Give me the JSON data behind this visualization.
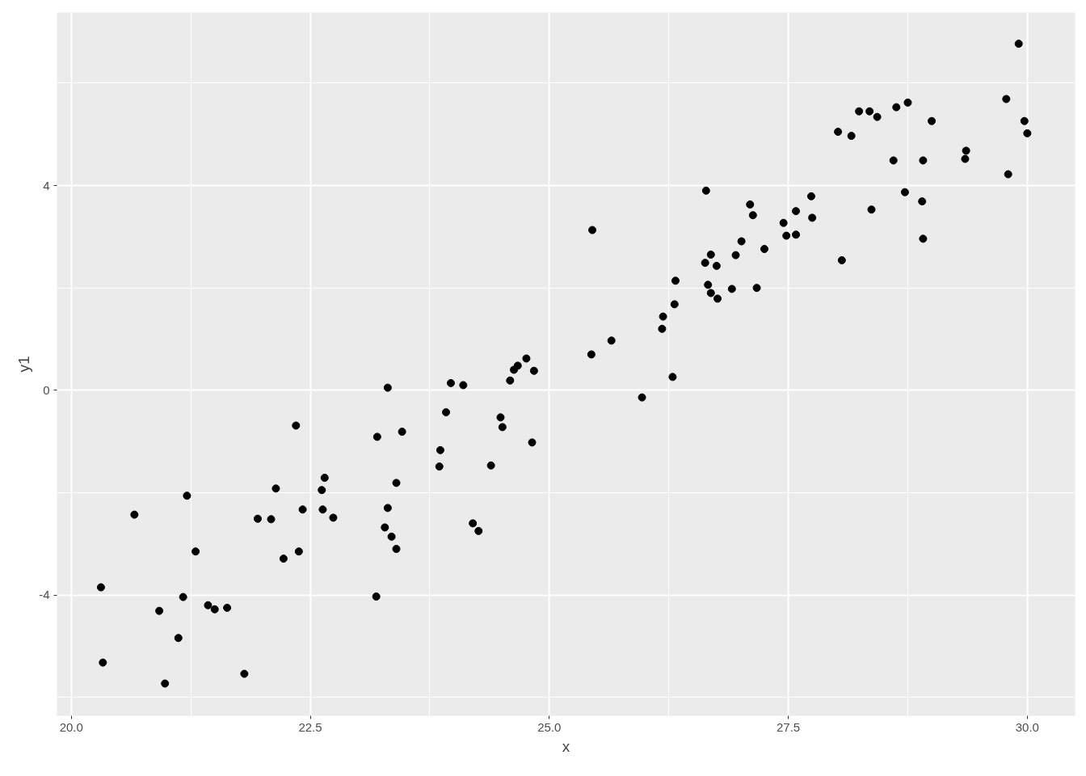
{
  "chart_data": {
    "type": "scatter",
    "xlabel": "x",
    "ylabel": "y1",
    "xlim": [
      19.85,
      30.5
    ],
    "ylim": [
      -6.36,
      7.38
    ],
    "xticks": [
      {
        "value": 20,
        "label": "20.0"
      },
      {
        "value": 22.5,
        "label": "22.5"
      },
      {
        "value": 25,
        "label": "25.0"
      },
      {
        "value": 27.5,
        "label": "27.5"
      },
      {
        "value": 30,
        "label": "30.0"
      }
    ],
    "yticks": [
      -4,
      0,
      4
    ],
    "grid": true,
    "marker": "circle",
    "series": [
      {
        "color": "#000000",
        "x": [
          20.31,
          20.33,
          20.66,
          20.92,
          20.98,
          21.12,
          21.17,
          21.21,
          21.3,
          21.43,
          21.5,
          21.63,
          21.81,
          21.95,
          22.09,
          22.14,
          22.22,
          22.35,
          22.38,
          22.42,
          22.62,
          22.65,
          22.63,
          22.74,
          23.19,
          23.2,
          23.28,
          23.31,
          23.31,
          23.35,
          23.4,
          23.4,
          23.46,
          23.85,
          23.86,
          23.92,
          23.97,
          24.1,
          24.2,
          24.26,
          24.39,
          24.49,
          24.51,
          24.59,
          24.63,
          24.67,
          24.76,
          24.82,
          24.84,
          25.44,
          25.45,
          25.65,
          25.97,
          26.18,
          26.19,
          26.29,
          26.31,
          26.32,
          26.63,
          26.64,
          26.66,
          26.69,
          26.69,
          26.75,
          26.76,
          26.91,
          26.95,
          27.01,
          27.1,
          27.13,
          27.17,
          27.25,
          27.45,
          27.48,
          27.58,
          27.58,
          27.74,
          27.75,
          28.02,
          28.06,
          28.16,
          28.24,
          28.35,
          28.37,
          28.43,
          28.6,
          28.63,
          28.72,
          28.75,
          28.9,
          28.91,
          28.91,
          29.0,
          29.35,
          29.36,
          29.78,
          29.8,
          29.91,
          29.97,
          30.0
        ],
        "values": [
          -3.85,
          -5.32,
          -2.43,
          -4.31,
          -5.73,
          -4.84,
          -4.04,
          -2.06,
          -3.15,
          -4.2,
          -4.28,
          -4.25,
          -5.54,
          -2.51,
          -2.52,
          -1.92,
          -3.29,
          -0.69,
          -3.15,
          -2.33,
          -1.95,
          -1.71,
          -2.33,
          -2.49,
          -4.03,
          -0.91,
          -2.68,
          0.05,
          -2.3,
          -2.86,
          -1.81,
          -3.1,
          -0.81,
          -1.49,
          -1.17,
          -0.43,
          0.14,
          0.1,
          -2.6,
          -2.75,
          -1.47,
          -0.53,
          -0.72,
          0.19,
          0.4,
          0.48,
          0.62,
          -1.02,
          0.38,
          0.7,
          3.13,
          0.97,
          -0.14,
          1.2,
          1.44,
          0.26,
          1.68,
          2.14,
          2.49,
          3.9,
          2.06,
          1.9,
          2.65,
          2.43,
          1.79,
          1.98,
          2.64,
          2.91,
          3.63,
          3.42,
          2.0,
          2.76,
          3.27,
          3.02,
          3.5,
          3.04,
          3.79,
          3.37,
          5.05,
          2.54,
          4.97,
          5.45,
          5.45,
          3.53,
          5.34,
          4.49,
          5.53,
          3.87,
          5.62,
          3.69,
          4.49,
          2.96,
          5.26,
          4.52,
          4.68,
          5.69,
          4.22,
          6.77,
          5.26,
          5.02
        ]
      }
    ]
  }
}
